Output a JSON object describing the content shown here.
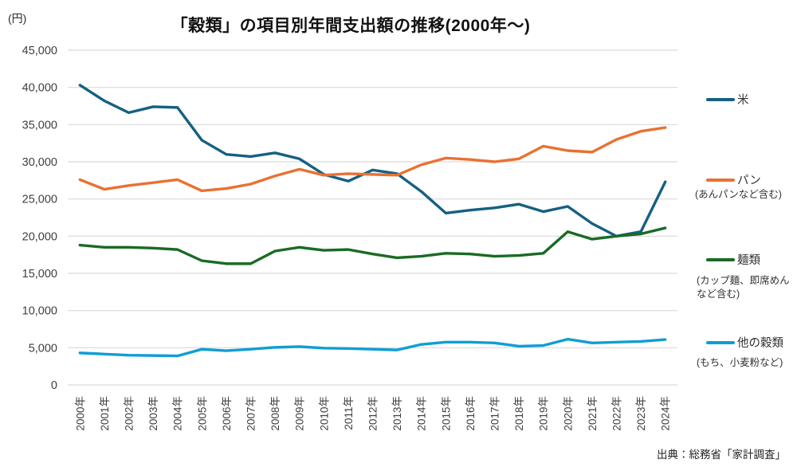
{
  "unit_label": "(円)",
  "title": "「穀類」の項目別年間支出額の推移(2000年～)",
  "source": "出典：総務省「家計調査」",
  "colors": {
    "rice": "#156082",
    "bread": "#E97132",
    "noodles": "#196B24",
    "other_grains": "#0F9ED5",
    "grid": "#d9d9d9",
    "axis_text": "#404040"
  },
  "legend": {
    "items": [
      {
        "label": "米",
        "sub": ""
      },
      {
        "label": "パン",
        "sub": "(あんパンなど含む)"
      },
      {
        "label": "麺類",
        "sub": "(カップ麺、即席めん\nなど含む)"
      },
      {
        "label": "他の穀類",
        "sub": "(もち、小麦粉など)"
      }
    ]
  },
  "chart_data": {
    "type": "line",
    "title": "「穀類」の項目別年間支出額の推移(2000年～)",
    "ylabel": "(円)",
    "xlabel": "",
    "ylim": [
      0,
      45000
    ],
    "ytick_step": 5000,
    "grid": "horizontal",
    "legend_position": "right",
    "x": [
      "2000年",
      "2001年",
      "2002年",
      "2003年",
      "2004年",
      "2005年",
      "2006年",
      "2007年",
      "2008年",
      "2009年",
      "2010年",
      "2011年",
      "2012年",
      "2013年",
      "2014年",
      "2015年",
      "2016年",
      "2017年",
      "2018年",
      "2019年",
      "2020年",
      "2021年",
      "2022年",
      "2023年",
      "2024年"
    ],
    "series": [
      {
        "name": "米",
        "color": "#156082",
        "values": [
          40300,
          38200,
          36600,
          37400,
          37300,
          32900,
          31000,
          30700,
          31200,
          30400,
          28300,
          27400,
          28900,
          28400,
          26000,
          23100,
          23500,
          23800,
          24300,
          23300,
          24000,
          21700,
          20000,
          20600,
          27300
        ]
      },
      {
        "name": "パン",
        "color": "#E97132",
        "values": [
          27600,
          26300,
          26800,
          27200,
          27600,
          26100,
          26400,
          27000,
          28100,
          29000,
          28200,
          28400,
          28300,
          28200,
          29600,
          30500,
          30300,
          30000,
          30400,
          32100,
          31500,
          31300,
          33000,
          34100,
          34600
        ]
      },
      {
        "name": "麺類",
        "color": "#196B24",
        "values": [
          18800,
          18500,
          18500,
          18400,
          18200,
          16700,
          16300,
          16300,
          18000,
          18500,
          18100,
          18200,
          17600,
          17100,
          17300,
          17700,
          17600,
          17300,
          17400,
          17700,
          20600,
          19600,
          20000,
          20300,
          21100
        ]
      },
      {
        "name": "他の穀類",
        "color": "#0F9ED5",
        "values": [
          4300,
          4150,
          4000,
          3950,
          3900,
          4800,
          4600,
          4800,
          5050,
          5150,
          4950,
          4900,
          4800,
          4700,
          5450,
          5750,
          5750,
          5650,
          5200,
          5300,
          6150,
          5650,
          5750,
          5850,
          6100
        ]
      }
    ]
  }
}
